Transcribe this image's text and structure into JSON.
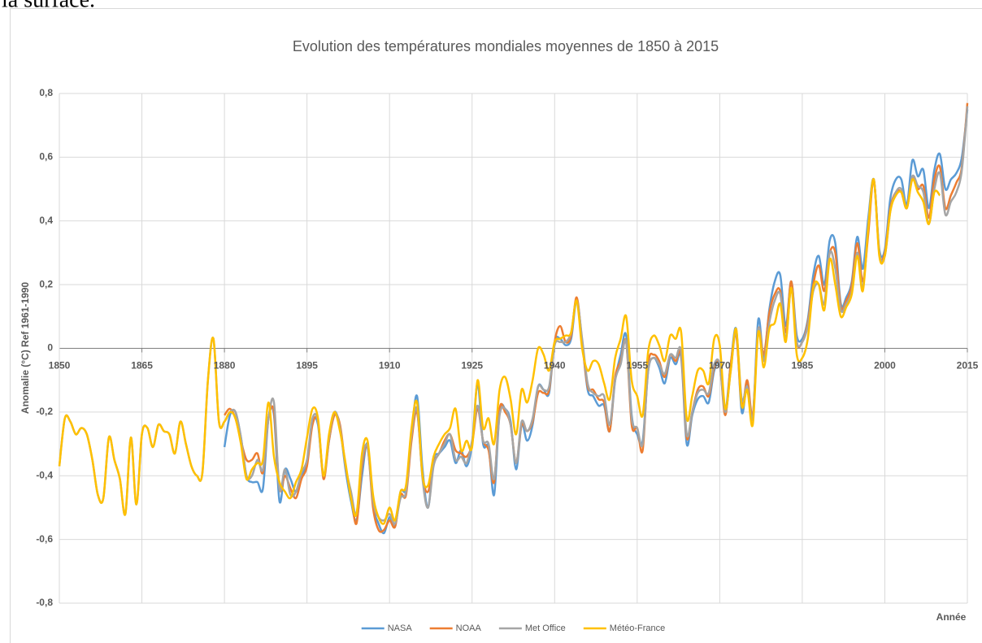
{
  "context_text": "la surface.",
  "chart_data": {
    "type": "line",
    "title": "Evolution des températures mondiales moyennes de 1850 à 2015",
    "y_label": "Anomalie (°C) Ref 1961-1990",
    "x_label": "Année",
    "xlim": [
      1850,
      2015
    ],
    "xticks": [
      1850,
      1865,
      1880,
      1895,
      1910,
      1925,
      1940,
      1955,
      1970,
      1985,
      2000,
      2015
    ],
    "ylim": [
      -0.8,
      0.8
    ],
    "yticks": [
      {
        "value": -0.8,
        "label": "-0,8"
      },
      {
        "value": -0.6,
        "label": "-0,6"
      },
      {
        "value": -0.4,
        "label": "-0,4"
      },
      {
        "value": -0.2,
        "label": "-0,2"
      },
      0,
      {
        "value": 0.2,
        "label": "0,2"
      },
      {
        "value": 0.4,
        "label": "0,4"
      },
      {
        "value": 0.6,
        "label": "0,6"
      },
      {
        "value": 0.8,
        "label": "0,8"
      }
    ],
    "grid": true,
    "legend": "bottom",
    "x": [
      1850,
      1851,
      1852,
      1853,
      1854,
      1855,
      1856,
      1857,
      1858,
      1859,
      1860,
      1861,
      1862,
      1863,
      1864,
      1865,
      1866,
      1867,
      1868,
      1869,
      1870,
      1871,
      1872,
      1873,
      1874,
      1875,
      1876,
      1877,
      1878,
      1879,
      1880,
      1881,
      1882,
      1883,
      1884,
      1885,
      1886,
      1887,
      1888,
      1889,
      1890,
      1891,
      1892,
      1893,
      1894,
      1895,
      1896,
      1897,
      1898,
      1899,
      1900,
      1901,
      1902,
      1903,
      1904,
      1905,
      1906,
      1907,
      1908,
      1909,
      1910,
      1911,
      1912,
      1913,
      1914,
      1915,
      1916,
      1917,
      1918,
      1919,
      1920,
      1921,
      1922,
      1923,
      1924,
      1925,
      1926,
      1927,
      1928,
      1929,
      1930,
      1931,
      1932,
      1933,
      1934,
      1935,
      1936,
      1937,
      1938,
      1939,
      1940,
      1941,
      1942,
      1943,
      1944,
      1945,
      1946,
      1947,
      1948,
      1949,
      1950,
      1951,
      1952,
      1953,
      1954,
      1955,
      1956,
      1957,
      1958,
      1959,
      1960,
      1961,
      1962,
      1963,
      1964,
      1965,
      1966,
      1967,
      1968,
      1969,
      1970,
      1971,
      1972,
      1973,
      1974,
      1975,
      1976,
      1977,
      1978,
      1979,
      1980,
      1981,
      1982,
      1983,
      1984,
      1985,
      1986,
      1987,
      1988,
      1989,
      1990,
      1991,
      1992,
      1993,
      1994,
      1995,
      1996,
      1997,
      1998,
      1999,
      2000,
      2001,
      2002,
      2003,
      2004,
      2005,
      2006,
      2007,
      2008,
      2009,
      2010,
      2011,
      2012,
      2013,
      2014,
      2015
    ],
    "series": [
      {
        "name": "NASA",
        "color": "#5b9bd5",
        "values": [
          null,
          null,
          null,
          null,
          null,
          null,
          null,
          null,
          null,
          null,
          null,
          null,
          null,
          null,
          null,
          null,
          null,
          null,
          null,
          null,
          null,
          null,
          null,
          null,
          null,
          null,
          null,
          null,
          null,
          null,
          -0.31,
          -0.21,
          -0.2,
          -0.28,
          -0.4,
          -0.42,
          -0.42,
          -0.44,
          -0.22,
          -0.21,
          -0.48,
          -0.38,
          -0.41,
          -0.45,
          -0.4,
          -0.36,
          -0.23,
          -0.24,
          -0.4,
          -0.29,
          -0.2,
          -0.25,
          -0.38,
          -0.48,
          -0.54,
          -0.4,
          -0.3,
          -0.49,
          -0.55,
          -0.58,
          -0.53,
          -0.56,
          -0.45,
          -0.44,
          -0.27,
          -0.15,
          -0.38,
          -0.5,
          -0.35,
          -0.33,
          -0.31,
          -0.29,
          -0.36,
          -0.32,
          -0.37,
          -0.3,
          -0.11,
          -0.3,
          -0.31,
          -0.46,
          -0.2,
          -0.19,
          -0.23,
          -0.38,
          -0.24,
          -0.29,
          -0.24,
          -0.12,
          -0.13,
          -0.14,
          0.02,
          0.03,
          0.01,
          0.03,
          0.15,
          0.02,
          -0.13,
          -0.15,
          -0.18,
          -0.18,
          -0.26,
          -0.1,
          -0.02,
          0.04,
          -0.21,
          -0.27,
          -0.29,
          -0.07,
          -0.03,
          -0.06,
          -0.11,
          -0.03,
          -0.05,
          -0.03,
          -0.3,
          -0.21,
          -0.16,
          -0.15,
          -0.17,
          -0.07,
          -0.05,
          -0.19,
          -0.05,
          0.06,
          -0.2,
          -0.11,
          -0.22,
          0.09,
          -0.03,
          0.12,
          0.21,
          0.23,
          0.07,
          0.21,
          0.04,
          0.03,
          0.09,
          0.23,
          0.29,
          0.2,
          0.34,
          0.33,
          0.14,
          0.16,
          0.21,
          0.35,
          0.25,
          0.41,
          0.53,
          0.31,
          0.31,
          0.47,
          0.53,
          0.53,
          0.45,
          0.59,
          0.54,
          0.56,
          0.44,
          0.56,
          0.61,
          0.5,
          0.53,
          0.55,
          0.6,
          0.75
        ]
      },
      {
        "name": "NOAA",
        "color": "#ed7d31",
        "values": [
          null,
          null,
          null,
          null,
          null,
          null,
          null,
          null,
          null,
          null,
          null,
          null,
          null,
          null,
          null,
          null,
          null,
          null,
          null,
          null,
          null,
          null,
          null,
          null,
          null,
          null,
          null,
          null,
          null,
          null,
          -0.21,
          -0.19,
          -0.22,
          -0.29,
          -0.35,
          -0.35,
          -0.33,
          -0.39,
          -0.22,
          -0.2,
          -0.44,
          -0.4,
          -0.44,
          -0.47,
          -0.41,
          -0.37,
          -0.24,
          -0.23,
          -0.41,
          -0.29,
          -0.21,
          -0.24,
          -0.37,
          -0.46,
          -0.55,
          -0.37,
          -0.31,
          -0.5,
          -0.57,
          -0.57,
          -0.54,
          -0.56,
          -0.46,
          -0.46,
          -0.29,
          -0.2,
          -0.4,
          -0.45,
          -0.36,
          -0.33,
          -0.29,
          -0.27,
          -0.32,
          -0.33,
          -0.34,
          -0.3,
          -0.19,
          -0.29,
          -0.32,
          -0.42,
          -0.19,
          -0.2,
          -0.24,
          -0.36,
          -0.24,
          -0.26,
          -0.23,
          -0.14,
          -0.14,
          -0.13,
          0.02,
          0.07,
          0.02,
          0.04,
          0.16,
          0.02,
          -0.12,
          -0.13,
          -0.16,
          -0.17,
          -0.26,
          -0.09,
          -0.04,
          0.02,
          -0.24,
          -0.25,
          -0.32,
          -0.05,
          -0.02,
          -0.04,
          -0.09,
          -0.02,
          -0.04,
          -0.02,
          -0.28,
          -0.2,
          -0.13,
          -0.12,
          -0.15,
          -0.06,
          -0.05,
          -0.21,
          -0.05,
          0.04,
          -0.18,
          -0.1,
          -0.21,
          0.06,
          -0.02,
          0.11,
          0.17,
          0.18,
          0.05,
          0.21,
          0.02,
          0.02,
          0.08,
          0.2,
          0.26,
          0.18,
          0.3,
          0.3,
          0.13,
          0.15,
          0.2,
          0.33,
          0.21,
          0.36,
          0.53,
          0.3,
          0.3,
          0.44,
          0.49,
          0.49,
          0.44,
          0.54,
          0.5,
          0.51,
          0.41,
          0.53,
          0.57,
          0.44,
          0.48,
          0.52,
          0.57,
          0.77
        ]
      },
      {
        "name": "Met Office",
        "color": "#a5a5a5",
        "values": [
          -0.37,
          -0.22,
          -0.23,
          -0.27,
          -0.25,
          -0.27,
          -0.35,
          -0.46,
          -0.47,
          -0.28,
          -0.35,
          -0.41,
          -0.52,
          -0.28,
          -0.49,
          -0.27,
          -0.25,
          -0.31,
          -0.24,
          -0.26,
          -0.27,
          -0.33,
          -0.23,
          -0.3,
          -0.37,
          -0.4,
          -0.39,
          -0.1,
          0.03,
          -0.23,
          -0.23,
          -0.2,
          -0.2,
          -0.28,
          -0.4,
          -0.4,
          -0.35,
          -0.38,
          -0.22,
          -0.17,
          -0.44,
          -0.38,
          -0.46,
          -0.45,
          -0.39,
          -0.35,
          -0.22,
          -0.23,
          -0.4,
          -0.28,
          -0.2,
          -0.25,
          -0.37,
          -0.45,
          -0.52,
          -0.35,
          -0.31,
          -0.48,
          -0.53,
          -0.54,
          -0.52,
          -0.55,
          -0.47,
          -0.45,
          -0.27,
          -0.19,
          -0.41,
          -0.5,
          -0.37,
          -0.33,
          -0.3,
          -0.27,
          -0.35,
          -0.34,
          -0.36,
          -0.29,
          -0.18,
          -0.29,
          -0.3,
          -0.41,
          -0.21,
          -0.19,
          -0.24,
          -0.36,
          -0.23,
          -0.26,
          -0.22,
          -0.12,
          -0.13,
          -0.12,
          0.01,
          0.02,
          0.02,
          0.05,
          0.15,
          0.03,
          -0.11,
          -0.14,
          -0.15,
          -0.15,
          -0.24,
          -0.1,
          -0.05,
          0.02,
          -0.22,
          -0.25,
          -0.3,
          -0.07,
          -0.03,
          -0.05,
          -0.08,
          -0.02,
          -0.03,
          -0.01,
          -0.27,
          -0.2,
          -0.14,
          -0.13,
          -0.14,
          -0.05,
          -0.05,
          -0.2,
          -0.07,
          0.05,
          -0.16,
          -0.12,
          -0.22,
          0.06,
          -0.04,
          0.08,
          0.15,
          0.17,
          0.03,
          0.19,
          0.02,
          0.02,
          0.07,
          0.18,
          0.2,
          0.14,
          0.3,
          0.25,
          0.12,
          0.14,
          0.18,
          0.3,
          0.19,
          0.39,
          0.53,
          0.3,
          0.29,
          0.43,
          0.49,
          0.5,
          0.44,
          0.54,
          0.51,
          0.49,
          0.39,
          0.5,
          0.55,
          0.42,
          0.46,
          0.49,
          0.56,
          0.76
        ]
      },
      {
        "name": "Météo-France",
        "color": "#ffc000",
        "values": [
          -0.37,
          -0.22,
          -0.23,
          -0.27,
          -0.25,
          -0.27,
          -0.35,
          -0.46,
          -0.47,
          -0.28,
          -0.35,
          -0.41,
          -0.52,
          -0.28,
          -0.49,
          -0.27,
          -0.25,
          -0.31,
          -0.24,
          -0.26,
          -0.27,
          -0.33,
          -0.23,
          -0.3,
          -0.37,
          -0.4,
          -0.39,
          -0.1,
          0.03,
          -0.23,
          -0.23,
          -0.2,
          -0.22,
          -0.3,
          -0.41,
          -0.38,
          -0.36,
          -0.35,
          -0.17,
          -0.34,
          -0.42,
          -0.45,
          -0.47,
          -0.42,
          -0.38,
          -0.28,
          -0.19,
          -0.22,
          -0.4,
          -0.27,
          -0.2,
          -0.26,
          -0.36,
          -0.47,
          -0.52,
          -0.33,
          -0.29,
          -0.46,
          -0.53,
          -0.55,
          -0.5,
          -0.54,
          -0.45,
          -0.43,
          -0.25,
          -0.17,
          -0.4,
          -0.43,
          -0.34,
          -0.3,
          -0.27,
          -0.25,
          -0.19,
          -0.32,
          -0.29,
          -0.31,
          -0.1,
          -0.25,
          -0.22,
          -0.3,
          -0.13,
          -0.09,
          -0.16,
          -0.27,
          -0.13,
          -0.17,
          -0.1,
          0.0,
          -0.02,
          -0.07,
          0.02,
          0.03,
          0.04,
          0.05,
          0.15,
          0.0,
          -0.07,
          -0.04,
          -0.05,
          -0.11,
          -0.16,
          -0.03,
          0.03,
          0.1,
          -0.1,
          -0.15,
          -0.21,
          -0.01,
          0.04,
          0.01,
          -0.04,
          0.04,
          0.03,
          0.05,
          -0.22,
          -0.15,
          -0.07,
          -0.07,
          -0.11,
          0.03,
          0.01,
          -0.19,
          -0.07,
          0.06,
          -0.18,
          -0.13,
          -0.24,
          0.05,
          -0.06,
          0.06,
          0.08,
          0.14,
          0.02,
          0.19,
          -0.02,
          -0.03,
          0.03,
          0.19,
          0.2,
          0.12,
          0.28,
          0.2,
          0.1,
          0.13,
          0.17,
          0.29,
          0.18,
          0.38,
          0.53,
          0.29,
          0.29,
          0.43,
          0.48,
          0.49,
          0.44,
          0.53,
          0.49,
          0.46,
          0.39,
          0.49,
          0.48,
          null,
          null,
          null,
          null,
          null
        ]
      }
    ]
  }
}
